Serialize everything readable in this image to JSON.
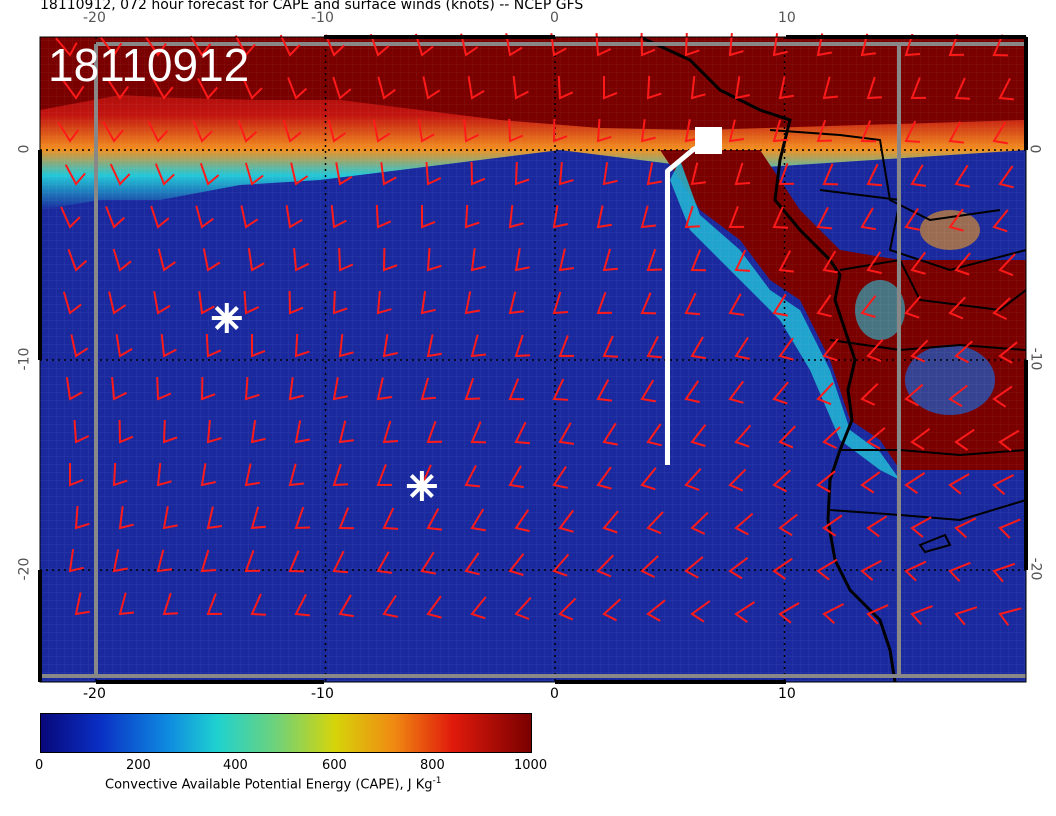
{
  "map": {
    "title": "18110912, 072 hour forecast for CAPE and surface winds (knots) -- NCEP GFS",
    "datestamp": "18110912",
    "lon_ticks": [
      "-20",
      "-10",
      "0",
      "10"
    ],
    "lat_ticks": [
      "0",
      "-10",
      "-20"
    ],
    "lon_range": [
      -22.5,
      20.5
    ],
    "lat_range": [
      -25.5,
      5
    ],
    "markers": [
      {
        "name": "asterisk-marker",
        "lon": -14.3,
        "lat": -8.0
      },
      {
        "name": "asterisk-marker",
        "lon": -5.8,
        "lat": -16.0
      }
    ],
    "track": {
      "name": "white-track-line",
      "points": [
        [
          4.9,
          -15
        ],
        [
          4.9,
          -1
        ],
        [
          6,
          0
        ],
        [
          6.5,
          0.3
        ]
      ]
    },
    "colors": {
      "ocean_low": "#1a2a9e",
      "land_high": "#7a0000",
      "wind_barb": "#ff1a1a",
      "marker": "#ffffff",
      "track": "#ffffff"
    }
  },
  "colorbar": {
    "labels": [
      "0",
      "200",
      "400",
      "600",
      "800",
      "1000"
    ],
    "title": "Convective Available Potential Energy (CAPE), J Kg",
    "title_sup": "-1",
    "range": [
      0,
      1000
    ]
  }
}
